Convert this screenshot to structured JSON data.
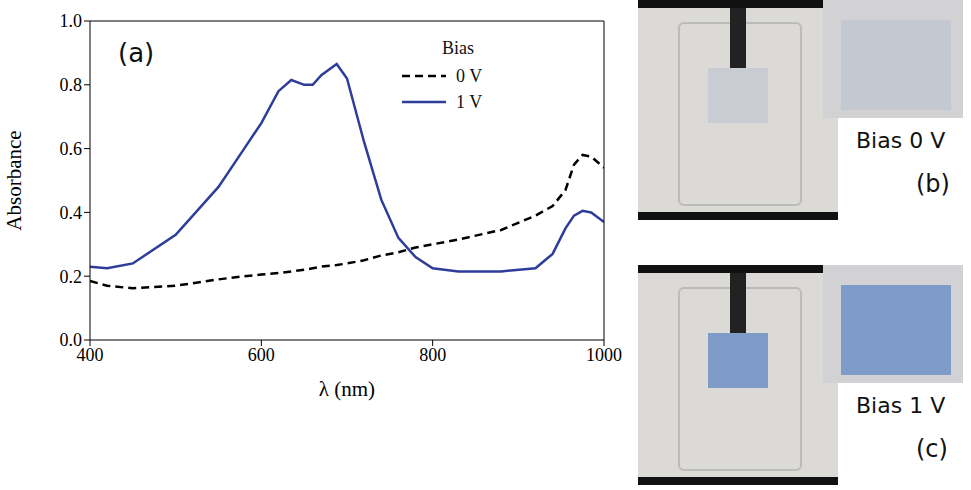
{
  "chart_data": {
    "type": "line",
    "panel_label": "(a)",
    "x_label": "λ (nm)",
    "y_label": "Absorbance",
    "legend_title": "Bias",
    "legend": "upper right",
    "grid": false,
    "xlim": [
      400,
      1000
    ],
    "xticks": [
      400,
      600,
      800,
      1000
    ],
    "ylim": [
      0,
      1
    ],
    "yticks": [
      {
        "value": 0,
        "label": "0.0"
      },
      {
        "value": 0.2,
        "label": "0.2"
      },
      {
        "value": 0.4,
        "label": "0.4"
      },
      {
        "value": 0.6,
        "label": "0.6"
      },
      {
        "value": 0.8,
        "label": "0.8"
      },
      {
        "value": 1,
        "label": "1.0"
      }
    ],
    "x": [
      400,
      420,
      450,
      500,
      550,
      580,
      600,
      620,
      635,
      650,
      660,
      670,
      688,
      700,
      720,
      740,
      760,
      780,
      800,
      830,
      880,
      920,
      940,
      955,
      965,
      975,
      985,
      1000
    ],
    "series": [
      {
        "name": "0 V",
        "color": "#000000",
        "line_style": "dashed",
        "values": [
          0.185,
          0.17,
          0.162,
          0.17,
          0.19,
          0.2,
          0.205,
          0.21,
          0.215,
          0.22,
          0.225,
          0.23,
          0.235,
          0.24,
          0.25,
          0.265,
          0.275,
          0.29,
          0.3,
          0.315,
          0.345,
          0.39,
          0.42,
          0.47,
          0.55,
          0.58,
          0.575,
          0.54
        ]
      },
      {
        "name": "1 V",
        "color": "#2e3d9a",
        "line_style": "solid",
        "values": [
          0.23,
          0.225,
          0.24,
          0.33,
          0.48,
          0.6,
          0.68,
          0.78,
          0.815,
          0.8,
          0.8,
          0.83,
          0.865,
          0.82,
          0.62,
          0.44,
          0.32,
          0.26,
          0.225,
          0.215,
          0.215,
          0.225,
          0.27,
          0.35,
          0.39,
          0.405,
          0.4,
          0.37
        ]
      }
    ]
  },
  "photos": [
    {
      "caption": "Bias 0 V",
      "label": "(b)"
    },
    {
      "caption": "Bias 1 V",
      "label": "(c)"
    }
  ]
}
